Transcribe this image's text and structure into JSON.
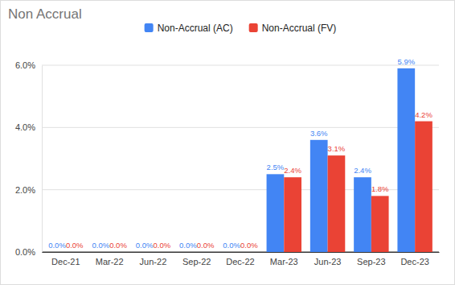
{
  "chart_data": {
    "type": "bar",
    "title": "Non Accrual",
    "categories": [
      "Dec-21",
      "Mar-22",
      "Jun-22",
      "Sep-22",
      "Dec-22",
      "Mar-23",
      "Jun-23",
      "Sep-23",
      "Dec-23"
    ],
    "series": [
      {
        "name": "Non-Accrual (AC)",
        "color": "#4285f4",
        "values": [
          0,
          0,
          0,
          0,
          0,
          2.5,
          3.6,
          2.4,
          5.9
        ],
        "value_labels": [
          "0.0%",
          "0.0%",
          "0.0%",
          "0.0%",
          "0.0%",
          "2.5%",
          "3.6%",
          "2.4%",
          "5.9%"
        ]
      },
      {
        "name": "Non-Accrual (FV)",
        "color": "#ea4335",
        "values": [
          0,
          0,
          0,
          0,
          0,
          2.4,
          3.1,
          1.8,
          4.2
        ],
        "value_labels": [
          "0.0%",
          "0.0%",
          "0.0%",
          "0.0%",
          "0.0%",
          "2.4%",
          "3.1%",
          "1.8%",
          "4.2%"
        ]
      }
    ],
    "ylim": [
      0,
      6
    ],
    "yticks": [
      {
        "value": 0,
        "label": "0.0%"
      },
      {
        "value": 2,
        "label": "2.0%"
      },
      {
        "value": 4,
        "label": "4.0%"
      },
      {
        "value": 6,
        "label": "6.0%"
      }
    ],
    "grid": true,
    "legend": "top",
    "data_labels": true
  }
}
